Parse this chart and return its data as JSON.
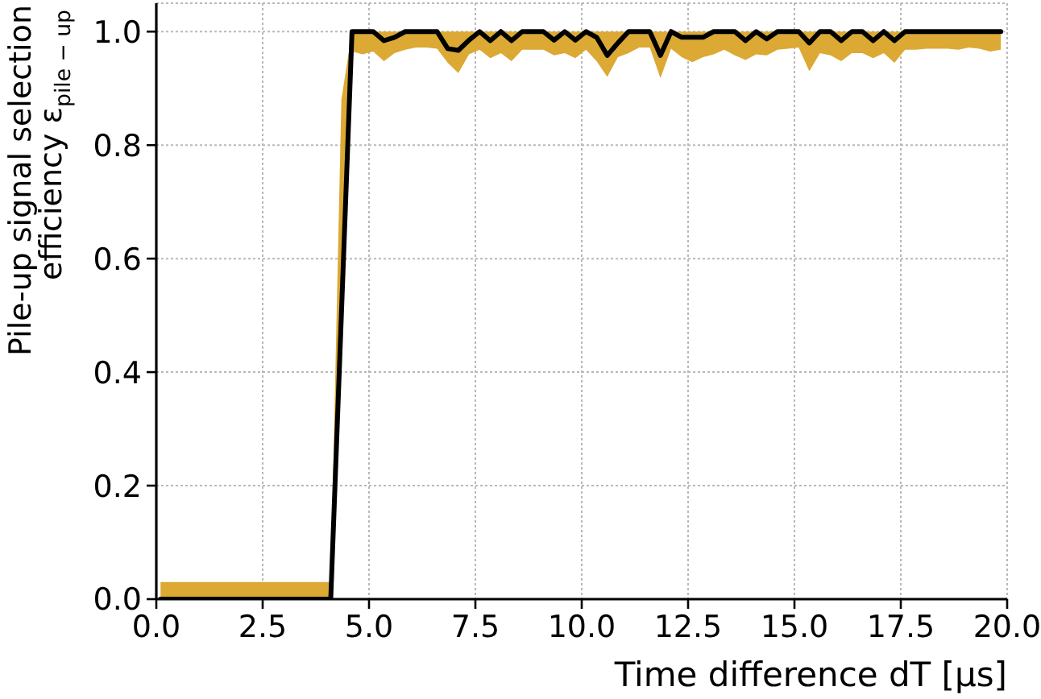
{
  "chart_data": {
    "type": "line",
    "xlabel": "Time difference dT [μs]",
    "ylabel": "Pile-up signal selection\nefficiency ε$_{pile − up}$",
    "x": [
      0.1,
      4.1,
      4.35,
      4.6,
      4.85,
      5.1,
      5.35,
      5.6,
      5.85,
      6.1,
      6.35,
      6.6,
      6.85,
      7.1,
      7.35,
      7.6,
      7.85,
      8.1,
      8.35,
      8.6,
      8.85,
      9.1,
      9.35,
      9.6,
      9.85,
      10.1,
      10.35,
      10.6,
      10.85,
      11.1,
      11.35,
      11.6,
      11.85,
      12.1,
      12.35,
      12.6,
      12.85,
      13.1,
      13.35,
      13.6,
      13.85,
      14.1,
      14.35,
      14.6,
      14.85,
      15.1,
      15.35,
      15.6,
      15.85,
      16.1,
      16.35,
      16.6,
      16.85,
      17.1,
      17.35,
      17.6,
      17.85,
      18.1,
      18.35,
      18.6,
      18.85,
      19.1,
      19.35,
      19.6,
      19.85
    ],
    "series": [
      {
        "color": "#000000",
        "values": [
          0,
          0,
          0.5,
          1,
          1,
          1,
          0.984,
          0.99,
          1,
          1,
          1,
          1,
          0.97,
          0.967,
          0.985,
          1,
          0.984,
          1,
          0.984,
          1,
          1,
          1,
          0.985,
          1,
          0.985,
          1,
          0.99,
          0.958,
          0.98,
          1,
          1,
          1,
          0.958,
          1,
          0.99,
          0.99,
          0.99,
          1,
          1,
          1,
          0.984,
          1,
          0.987,
          1,
          1,
          1,
          0.98,
          1,
          1,
          0.984,
          1,
          1,
          0.984,
          1,
          0.984,
          1,
          1,
          1,
          1,
          1,
          1,
          1,
          1,
          1,
          1
        ],
        "lower": [
          0,
          0,
          0.45,
          0.965,
          0.96,
          0.965,
          0.948,
          0.962,
          0.968,
          0.972,
          0.972,
          0.97,
          0.945,
          0.927,
          0.96,
          0.968,
          0.953,
          0.962,
          0.948,
          0.968,
          0.968,
          0.968,
          0.958,
          0.962,
          0.953,
          0.968,
          0.948,
          0.92,
          0.955,
          0.962,
          0.972,
          0.972,
          0.918,
          0.97,
          0.955,
          0.946,
          0.955,
          0.96,
          0.968,
          0.958,
          0.95,
          0.96,
          0.958,
          0.968,
          0.97,
          0.972,
          0.93,
          0.962,
          0.958,
          0.948,
          0.962,
          0.962,
          0.953,
          0.962,
          0.945,
          0.968,
          0.968,
          0.97,
          0.97,
          0.97,
          0.968,
          0.972,
          0.97,
          0.965,
          0.968
        ],
        "upper": [
          0.03,
          0.03,
          0.88,
          1,
          1,
          1,
          1,
          1,
          1,
          1,
          1,
          1,
          1,
          1,
          1,
          1,
          1,
          1,
          1,
          1,
          1,
          1,
          1,
          1,
          1,
          1,
          1,
          1,
          1,
          1,
          1,
          1,
          1,
          1,
          1,
          1,
          1,
          1,
          1,
          1,
          1,
          1,
          1,
          1,
          1,
          1,
          1,
          1,
          1,
          1,
          1,
          1,
          1,
          1,
          1,
          1,
          1,
          1,
          1,
          1,
          1,
          1,
          1,
          1,
          1
        ]
      }
    ],
    "xlim": [
      0,
      20
    ],
    "xticks": [
      {
        "value": 0,
        "label": "0.0"
      },
      {
        "value": 2.5,
        "label": "2.5"
      },
      {
        "value": 5,
        "label": "5.0"
      },
      {
        "value": 7.5,
        "label": "7.5"
      },
      {
        "value": 10,
        "label": "10.0"
      },
      {
        "value": 12.5,
        "label": "12.5"
      },
      {
        "value": 15,
        "label": "15.0"
      },
      {
        "value": 17.5,
        "label": "17.5"
      },
      {
        "value": 20,
        "label": "20.0"
      }
    ],
    "ylim": [
      0,
      1.05
    ],
    "yticks": [
      {
        "value": 0,
        "label": "0.0"
      },
      {
        "value": 0.2,
        "label": "0.2"
      },
      {
        "value": 0.4,
        "label": "0.4"
      },
      {
        "value": 0.6,
        "label": "0.6"
      },
      {
        "value": 0.8,
        "label": "0.8"
      },
      {
        "value": 1,
        "label": "1.0"
      }
    ],
    "grid": true,
    "line_style": "solid"
  }
}
